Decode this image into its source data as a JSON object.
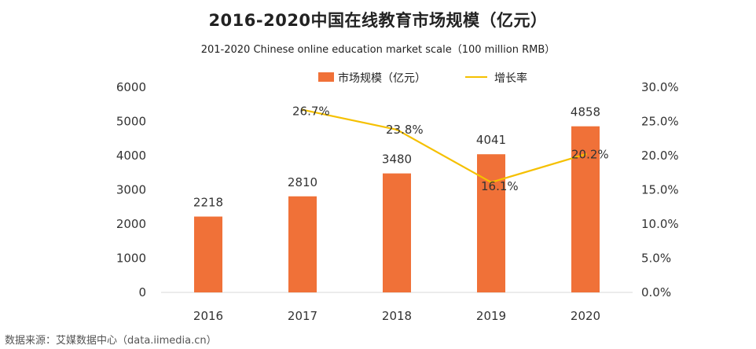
{
  "chart_data": {
    "type": "bar",
    "title": "2016-2020中国在线教育市场规模（亿元）",
    "subtitle": "201-2020 Chinese online education market scale（100 million RMB）",
    "categories": [
      "2016",
      "2017",
      "2018",
      "2019",
      "2020"
    ],
    "series": [
      {
        "name": "市场规模（亿元）",
        "type": "bar",
        "axis": "left",
        "color": "#f07138",
        "values": [
          2218,
          2810,
          3480,
          4041,
          4858
        ],
        "labels": [
          "2218",
          "2810",
          "3480",
          "4041",
          "4858"
        ]
      },
      {
        "name": "增长率",
        "type": "line",
        "axis": "right",
        "color": "#f5c000",
        "values": [
          null,
          26.7,
          23.8,
          16.1,
          20.2
        ],
        "labels": [
          "",
          "26.7%",
          "23.8%",
          "16.1%",
          "20.2%"
        ]
      }
    ],
    "ylim_left": [
      0,
      6000
    ],
    "yticks_left": [
      "6000",
      "5000",
      "4000",
      "3000",
      "2000",
      "1000",
      "0"
    ],
    "ylim_right": [
      0,
      30
    ],
    "yticks_right": [
      "30.0%",
      "25.0%",
      "20.0%",
      "15.0%",
      "10.0%",
      "5.0%",
      "0.0%"
    ],
    "grid": false,
    "legend_position": "top-center"
  },
  "source": "数据来源：艾媒数据中心（data.iimedia.cn）"
}
